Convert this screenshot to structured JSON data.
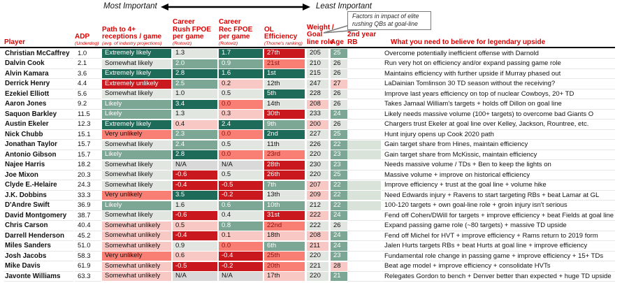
{
  "annotations": {
    "most_important": "Most Important",
    "least_important": "Least Important",
    "callout_line1": "Factors in impact of elite",
    "callout_line2": "rushing QBs at goal-line"
  },
  "palette": {
    "header_red": "#dd0000",
    "dark_green": "#1e6b59",
    "mid_green": "#7ba794",
    "neutral_gray_green": "#e1e6e1",
    "light_pink": "#f8c8c4",
    "salmon": "#f97e73",
    "dark_red": "#c9191e",
    "dark_red_text": "#8e1014",
    "na_gray": "#d9d9d9",
    "second_year_shade": "#d9e3d9"
  },
  "chart_data": {
    "type": "table",
    "columns": [
      {
        "key": "player",
        "lines": [
          "Player"
        ]
      },
      {
        "key": "adp",
        "lines": [
          "ADP"
        ],
        "sub": "(Underdog)"
      },
      {
        "key": "path",
        "lines": [
          "Path to 4+",
          "receptions / game"
        ],
        "sub": "(avg. of industry projections)"
      },
      {
        "key": "rush",
        "lines": [
          "Career",
          "Rush FPOE",
          "per game"
        ],
        "sub": "(Rotoviz)"
      },
      {
        "key": "rec",
        "lines": [
          "Career",
          "Rec FPOE",
          "per game"
        ],
        "sub": "(Rotoviz)"
      },
      {
        "key": "ol",
        "lines": [
          "OL",
          "Efficiency"
        ],
        "sub": "(Thorne's ranking)"
      },
      {
        "key": "weight",
        "lines": [
          "Weight /",
          "Goal",
          "line role"
        ]
      },
      {
        "key": "age",
        "lines": [
          "Age"
        ]
      },
      {
        "key": "rb2",
        "lines": [
          "2nd year",
          "RB"
        ]
      },
      {
        "key": "believe",
        "lines": [
          "What you need to believe for legendary upside"
        ]
      }
    ],
    "rows": [
      {
        "player": "Christian McCaffrey",
        "adp": "1.0",
        "path": {
          "v": "Extremely likely",
          "c": "g3"
        },
        "rush": {
          "v": "1.3",
          "c": "n"
        },
        "rec": {
          "v": "1.7",
          "c": "g3"
        },
        "ol": {
          "v": "27th",
          "c": "r3"
        },
        "weight": {
          "v": "205",
          "c": "n"
        },
        "age": {
          "v": "25",
          "c": "g2"
        },
        "rb2": false,
        "believe": "Overcome potentially inefficient offense with Darnold"
      },
      {
        "player": "Dalvin Cook",
        "adp": "2.1",
        "path": {
          "v": "Somewhat likely",
          "c": "n"
        },
        "rush": {
          "v": "2.0",
          "c": "g2"
        },
        "rec": {
          "v": "0.9",
          "c": "g2"
        },
        "ol": {
          "v": "21st",
          "c": "r2d"
        },
        "weight": {
          "v": "210",
          "c": "n"
        },
        "age": {
          "v": "26",
          "c": "n"
        },
        "rb2": false,
        "believe": "Run very hot on efficiency and/or expand passing game role"
      },
      {
        "player": "Alvin Kamara",
        "adp": "3.6",
        "path": {
          "v": "Extremely likely",
          "c": "g3"
        },
        "rush": {
          "v": "2.8",
          "c": "g3"
        },
        "rec": {
          "v": "1.6",
          "c": "g3"
        },
        "ol": {
          "v": "1st",
          "c": "g3"
        },
        "weight": {
          "v": "215",
          "c": "n"
        },
        "age": {
          "v": "26",
          "c": "n"
        },
        "rb2": false,
        "believe": "Maintains efficiency with further upside if Murray phased out"
      },
      {
        "player": "Derrick Henry",
        "adp": "4.4",
        "path": {
          "v": "Extremely unlikely",
          "c": "r3"
        },
        "rush": {
          "v": "2.5",
          "c": "g2"
        },
        "rec": {
          "v": "0.2",
          "c": "r1"
        },
        "ol": {
          "v": "12th",
          "c": "n"
        },
        "weight": {
          "v": "247",
          "c": "n"
        },
        "age": {
          "v": "27",
          "c": "r1"
        },
        "rb2": false,
        "believe": "LaDainian Tomlinson 30 TD season without the receiving?"
      },
      {
        "player": "Ezekiel Elliott",
        "adp": "5.6",
        "path": {
          "v": "Somewhat likely",
          "c": "n"
        },
        "rush": {
          "v": "1.0",
          "c": "n"
        },
        "rec": {
          "v": "0.5",
          "c": "n"
        },
        "ol": {
          "v": "5th",
          "c": "g3"
        },
        "weight": {
          "v": "228",
          "c": "n"
        },
        "age": {
          "v": "26",
          "c": "n"
        },
        "rb2": false,
        "believe": "Improve last years efficiency on top of nuclear Cowboys, 20+ TD"
      },
      {
        "player": "Aaron Jones",
        "adp": "9.2",
        "path": {
          "v": "Likely",
          "c": "g2"
        },
        "rush": {
          "v": "3.4",
          "c": "g3"
        },
        "rec": {
          "v": "0.0",
          "c": "r2d"
        },
        "ol": {
          "v": "14th",
          "c": "n"
        },
        "weight": {
          "v": "208",
          "c": "r1"
        },
        "age": {
          "v": "26",
          "c": "n"
        },
        "rb2": false,
        "believe": "Takes Jamaal William's targets + holds off Dillon on goal line"
      },
      {
        "player": "Saquon Barkley",
        "adp": "11.5",
        "path": {
          "v": "Likely",
          "c": "g2"
        },
        "rush": {
          "v": "1.3",
          "c": "n"
        },
        "rec": {
          "v": "0.3",
          "c": "r1"
        },
        "ol": {
          "v": "30th",
          "c": "r3"
        },
        "weight": {
          "v": "233",
          "c": "n"
        },
        "age": {
          "v": "24",
          "c": "g2"
        },
        "rb2": false,
        "believe": "Likely needs massive volume (100+ targets) to overcome bad Giants O"
      },
      {
        "player": "Austin Ekeler",
        "adp": "12.3",
        "path": {
          "v": "Extremely likely",
          "c": "g3"
        },
        "rush": {
          "v": "0.4",
          "c": "r1"
        },
        "rec": {
          "v": "2.4",
          "c": "g3"
        },
        "ol": {
          "v": "9th",
          "c": "g2"
        },
        "weight": {
          "v": "200",
          "c": "r1"
        },
        "age": {
          "v": "26",
          "c": "n"
        },
        "rb2": false,
        "believe": "Chargers trust Ekeler at goal line over Kelley, Jackson, Rountree, etc."
      },
      {
        "player": "Nick Chubb",
        "adp": "15.1",
        "path": {
          "v": "Very unlikely",
          "c": "r2"
        },
        "rush": {
          "v": "2.3",
          "c": "g2"
        },
        "rec": {
          "v": "0.0",
          "c": "r2d"
        },
        "ol": {
          "v": "2nd",
          "c": "g3"
        },
        "weight": {
          "v": "227",
          "c": "n"
        },
        "age": {
          "v": "25",
          "c": "g2"
        },
        "rb2": false,
        "believe": "Hunt injury opens up Cook 2020 path"
      },
      {
        "player": "Jonathan Taylor",
        "adp": "15.7",
        "path": {
          "v": "Somewhat likely",
          "c": "n"
        },
        "rush": {
          "v": "2.4",
          "c": "g2"
        },
        "rec": {
          "v": "0.5",
          "c": "n"
        },
        "ol": {
          "v": "11th",
          "c": "n"
        },
        "weight": {
          "v": "226",
          "c": "n"
        },
        "age": {
          "v": "22",
          "c": "g2"
        },
        "rb2": true,
        "believe": "Gain target share from Hines, maintain efficiency"
      },
      {
        "player": "Antonio Gibson",
        "adp": "15.7",
        "path": {
          "v": "Likely",
          "c": "g2"
        },
        "rush": {
          "v": "2.8",
          "c": "g3"
        },
        "rec": {
          "v": "0.0",
          "c": "r2d"
        },
        "ol": {
          "v": "23rd",
          "c": "r2d"
        },
        "weight": {
          "v": "220",
          "c": "n"
        },
        "age": {
          "v": "23",
          "c": "g2"
        },
        "rb2": true,
        "believe": "Gain target share from McKissic, maintain efficiency"
      },
      {
        "player": "Najee Harris",
        "adp": "18.2",
        "path": {
          "v": "Somewhat likely",
          "c": "n"
        },
        "rush": {
          "v": "N/A",
          "c": "na"
        },
        "rec": {
          "v": "N/A",
          "c": "na"
        },
        "ol": {
          "v": "28th",
          "c": "r3"
        },
        "weight": {
          "v": "230",
          "c": "n"
        },
        "age": {
          "v": "23",
          "c": "g2"
        },
        "rb2": false,
        "believe": "Needs massive volume / TDs + Ben to keep the lights on"
      },
      {
        "player": "Joe Mixon",
        "adp": "20.3",
        "path": {
          "v": "Somewhat likely",
          "c": "n"
        },
        "rush": {
          "v": "-0.6",
          "c": "r3"
        },
        "rec": {
          "v": "0.5",
          "c": "n"
        },
        "ol": {
          "v": "26th",
          "c": "r3"
        },
        "weight": {
          "v": "220",
          "c": "n"
        },
        "age": {
          "v": "25",
          "c": "g2"
        },
        "rb2": false,
        "believe": "Massive volume + improve on historical efficiency"
      },
      {
        "player": "Clyde E.-Helaire",
        "adp": "24.3",
        "path": {
          "v": "Somewhat likely",
          "c": "n"
        },
        "rush": {
          "v": "-0.4",
          "c": "r3"
        },
        "rec": {
          "v": "-0.5",
          "c": "r3"
        },
        "ol": {
          "v": "7th",
          "c": "g2"
        },
        "weight": {
          "v": "207",
          "c": "r1"
        },
        "age": {
          "v": "22",
          "c": "g2"
        },
        "rb2": true,
        "believe": "Improve efficiency + trust at the goal line + volume hike"
      },
      {
        "player": "J.K. Dobbins",
        "adp": "33.3",
        "path": {
          "v": "Very unlikely",
          "c": "r2"
        },
        "rush": {
          "v": "3.5",
          "c": "g3"
        },
        "rec": {
          "v": "-0.2",
          "c": "r3"
        },
        "ol": {
          "v": "13th",
          "c": "n"
        },
        "weight": {
          "v": "209",
          "c": "r1"
        },
        "age": {
          "v": "22",
          "c": "g2"
        },
        "rb2": true,
        "believe": "Need Edwards injury + Ravens to start targeting RBs + beat Lamar at GL"
      },
      {
        "player": "D'Andre Swift",
        "adp": "36.9",
        "path": {
          "v": "Likely",
          "c": "g2"
        },
        "rush": {
          "v": "1.6",
          "c": "n"
        },
        "rec": {
          "v": "0.6",
          "c": "g2"
        },
        "ol": {
          "v": "10th",
          "c": "g2"
        },
        "weight": {
          "v": "212",
          "c": "n"
        },
        "age": {
          "v": "22",
          "c": "g2"
        },
        "rb2": true,
        "believe": "100-120 targets + own goal-line role + groin injury isn't serious"
      },
      {
        "player": "David Montgomery",
        "adp": "38.7",
        "path": {
          "v": "Somewhat likely",
          "c": "n"
        },
        "rush": {
          "v": "-0.6",
          "c": "r3"
        },
        "rec": {
          "v": "0.4",
          "c": "n"
        },
        "ol": {
          "v": "31st",
          "c": "r3"
        },
        "weight": {
          "v": "222",
          "c": "r1"
        },
        "age": {
          "v": "24",
          "c": "g2"
        },
        "rb2": false,
        "believe": "Fend off Cohen/DWill for targets + improve efficiency + beat Fields at goal line"
      },
      {
        "player": "Chris Carson",
        "adp": "40.4",
        "path": {
          "v": "Somewhat unlikely",
          "c": "r1"
        },
        "rush": {
          "v": "0.5",
          "c": "r1"
        },
        "rec": {
          "v": "0.8",
          "c": "g2"
        },
        "ol": {
          "v": "22nd",
          "c": "r2d"
        },
        "weight": {
          "v": "222",
          "c": "n"
        },
        "age": {
          "v": "26",
          "c": "n"
        },
        "rb2": false,
        "believe": "Expand passing game role (~80 targets) + massive TD upside"
      },
      {
        "player": "Darrell Henderson",
        "adp": "45.2",
        "path": {
          "v": "Somewhat unlikely",
          "c": "r1"
        },
        "rush": {
          "v": "-0.4",
          "c": "r3"
        },
        "rec": {
          "v": "0.1",
          "c": "r1"
        },
        "ol": {
          "v": "18th",
          "c": "r1"
        },
        "weight": {
          "v": "208",
          "c": "r1"
        },
        "age": {
          "v": "24",
          "c": "g2"
        },
        "rb2": false,
        "believe": "Fend off Michel for HVT + improve efficiency + Rams return to 2019 form"
      },
      {
        "player": "Miles Sanders",
        "adp": "51.0",
        "path": {
          "v": "Somewhat unlikely",
          "c": "r1"
        },
        "rush": {
          "v": "0.9",
          "c": "n"
        },
        "rec": {
          "v": "0.0",
          "c": "r2d"
        },
        "ol": {
          "v": "6th",
          "c": "g2"
        },
        "weight": {
          "v": "211",
          "c": "r1"
        },
        "age": {
          "v": "24",
          "c": "g2"
        },
        "rb2": false,
        "believe": "Jalen Hurts targets RBs + beat Hurts at goal line + improve efficiency"
      },
      {
        "player": "Josh Jacobs",
        "adp": "58.3",
        "path": {
          "v": "Very unlikely",
          "c": "r2"
        },
        "rush": {
          "v": "0.6",
          "c": "r1"
        },
        "rec": {
          "v": "-0.4",
          "c": "r3"
        },
        "ol": {
          "v": "25th",
          "c": "r2d"
        },
        "weight": {
          "v": "220",
          "c": "n"
        },
        "age": {
          "v": "23",
          "c": "g2"
        },
        "rb2": false,
        "believe": "Fundamental role change in passing game + improve efficiency + 15+ TDs"
      },
      {
        "player": "Mike Davis",
        "adp": "61.9",
        "path": {
          "v": "Somewhat unlikely",
          "c": "r1"
        },
        "rush": {
          "v": "-0.5",
          "c": "r3"
        },
        "rec": {
          "v": "-0.2",
          "c": "r3"
        },
        "ol": {
          "v": "20th",
          "c": "r2d"
        },
        "weight": {
          "v": "221",
          "c": "n"
        },
        "age": {
          "v": "28",
          "c": "r1"
        },
        "rb2": false,
        "believe": "Beat age model + improve efficiency + consolidate HVTs"
      },
      {
        "player": "Javonte Williams",
        "adp": "63.3",
        "path": {
          "v": "Somewhat unlikely",
          "c": "r1"
        },
        "rush": {
          "v": "N/A",
          "c": "na"
        },
        "rec": {
          "v": "N/A",
          "c": "na"
        },
        "ol": {
          "v": "17th",
          "c": "r1"
        },
        "weight": {
          "v": "220",
          "c": "n"
        },
        "age": {
          "v": "21",
          "c": "g2"
        },
        "rb2": false,
        "believe": "Relegates Gordon to bench + Denver better than expected + huge TD upside"
      }
    ]
  }
}
